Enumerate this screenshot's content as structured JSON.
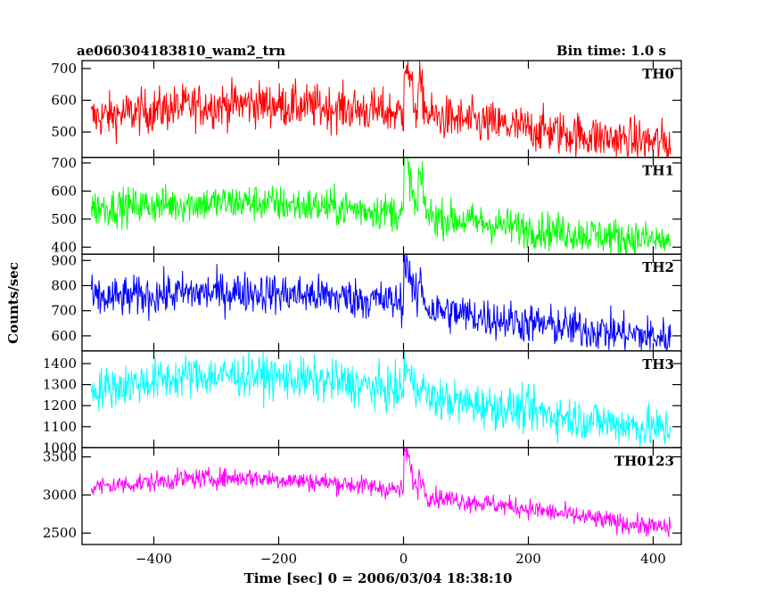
{
  "chart_data": {
    "type": "line",
    "title": "ae060304183810_wam2_trn",
    "subtitle": "Bin time: 1.0 s",
    "xlabel": "Time [sec] 0 = 2006/03/04 18:38:10",
    "ylabel": "Counts/sec",
    "xlim": [
      -515,
      445
    ],
    "x_ticks": [
      -400,
      -200,
      0,
      200,
      400
    ],
    "x_tick_labels": [
      "−400",
      "−200",
      "0",
      "200",
      "400"
    ],
    "x_range": [
      -500,
      428
    ],
    "grid": false,
    "panels": [
      {
        "name": "TH0",
        "color": "#ff0000",
        "ylim": [
          420,
          725
        ],
        "y_ticks": [
          500,
          600,
          700
        ],
        "y_tick_labels": [
          "500",
          "600",
          "700"
        ],
        "profile": [
          [
            -500,
            545
          ],
          [
            -350,
            580
          ],
          [
            -250,
            590
          ],
          [
            -100,
            575
          ],
          [
            -10,
            560
          ],
          [
            40,
            550
          ],
          [
            200,
            510
          ],
          [
            350,
            475
          ],
          [
            428,
            465
          ]
        ],
        "noise": 35,
        "bursts": [
          {
            "t": 2,
            "peak": 720
          },
          {
            "t": 25,
            "peak": 665
          }
        ]
      },
      {
        "name": "TH1",
        "color": "#00ff00",
        "ylim": [
          375,
          720
        ],
        "y_ticks": [
          400,
          500,
          600,
          700
        ],
        "y_tick_labels": [
          "400",
          "500",
          "600",
          "700"
        ],
        "profile": [
          [
            -500,
            540
          ],
          [
            -350,
            555
          ],
          [
            -250,
            560
          ],
          [
            -100,
            540
          ],
          [
            -10,
            525
          ],
          [
            40,
            510
          ],
          [
            200,
            465
          ],
          [
            350,
            435
          ],
          [
            428,
            420
          ]
        ],
        "noise": 33,
        "bursts": [
          {
            "t": 2,
            "peak": 715
          },
          {
            "t": 25,
            "peak": 670
          }
        ]
      },
      {
        "name": "TH2",
        "color": "#0000ff",
        "ylim": [
          540,
          925
        ],
        "y_ticks": [
          600,
          700,
          800,
          900
        ],
        "y_tick_labels": [
          "600",
          "700",
          "800",
          "900"
        ],
        "profile": [
          [
            -500,
            745
          ],
          [
            -350,
            770
          ],
          [
            -250,
            775
          ],
          [
            -100,
            755
          ],
          [
            -10,
            735
          ],
          [
            40,
            705
          ],
          [
            200,
            650
          ],
          [
            350,
            610
          ],
          [
            428,
            590
          ]
        ],
        "noise": 40,
        "bursts": [
          {
            "t": 2,
            "peak": 915
          },
          {
            "t": 25,
            "peak": 840
          }
        ]
      },
      {
        "name": "TH3",
        "color": "#00ffff",
        "ylim": [
          1000,
          1460
        ],
        "y_ticks": [
          1000,
          1100,
          1200,
          1300,
          1400
        ],
        "y_tick_labels": [
          "1000",
          "1100",
          "1200",
          "1300",
          "1400"
        ],
        "profile": [
          [
            -500,
            1275
          ],
          [
            -350,
            1340
          ],
          [
            -250,
            1345
          ],
          [
            -100,
            1310
          ],
          [
            -10,
            1270
          ],
          [
            40,
            1235
          ],
          [
            200,
            1175
          ],
          [
            350,
            1110
          ],
          [
            428,
            1085
          ]
        ],
        "noise": 50,
        "bursts": [
          {
            "t": 2,
            "peak": 1390
          },
          {
            "t": 25,
            "peak": 1350
          }
        ]
      },
      {
        "name": "TH0123",
        "color": "#ff00ff",
        "ylim": [
          2350,
          3620
        ],
        "y_ticks": [
          2500,
          3000,
          3500
        ],
        "y_tick_labels": [
          "2500",
          "3000",
          "3500"
        ],
        "profile": [
          [
            -500,
            3100
          ],
          [
            -350,
            3210
          ],
          [
            -250,
            3230
          ],
          [
            -100,
            3150
          ],
          [
            -10,
            3070
          ],
          [
            40,
            2980
          ],
          [
            200,
            2820
          ],
          [
            350,
            2630
          ],
          [
            428,
            2560
          ]
        ],
        "noise": 65,
        "bursts": [
          {
            "t": 2,
            "peak": 3600
          },
          {
            "t": 25,
            "peak": 3320
          }
        ]
      }
    ]
  }
}
